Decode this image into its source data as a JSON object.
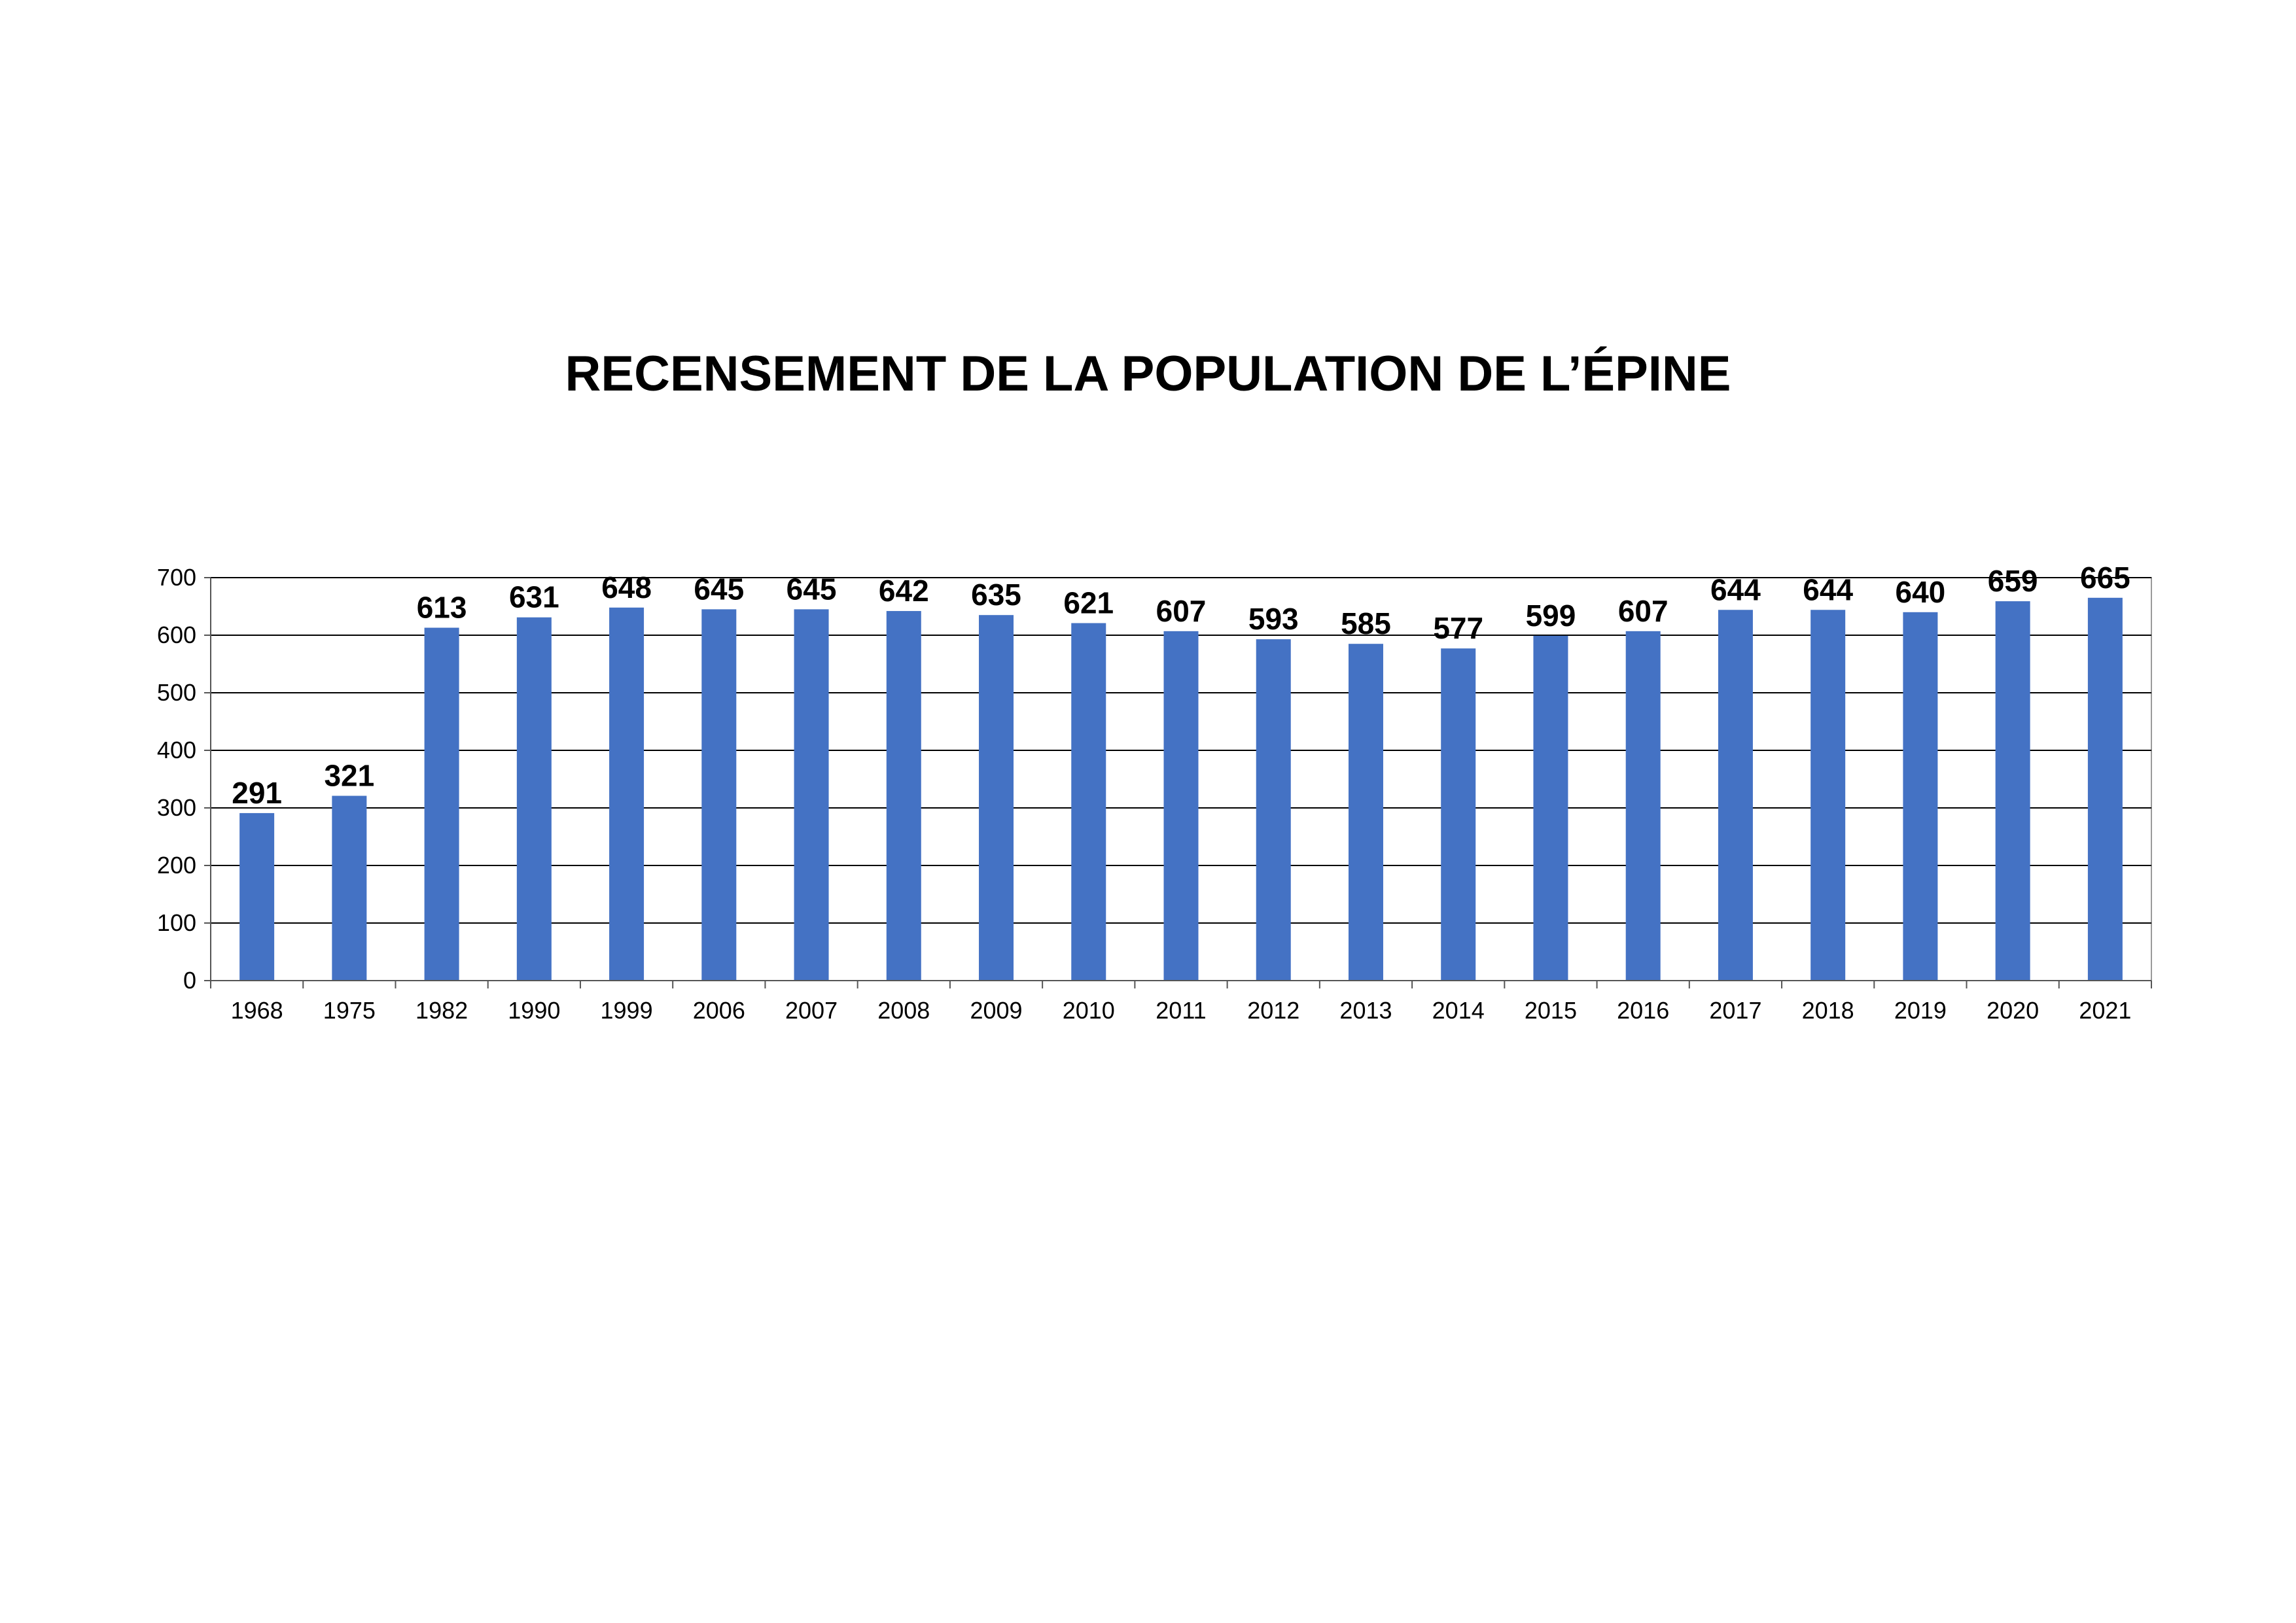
{
  "chart_data": {
    "type": "bar",
    "title": "RECENSEMENT DE LA POPULATION DE L’ÉPINE",
    "xlabel": "",
    "ylabel": "",
    "categories": [
      "1968",
      "1975",
      "1982",
      "1990",
      "1999",
      "2006",
      "2007",
      "2008",
      "2009",
      "2010",
      "2011",
      "2012",
      "2013",
      "2014",
      "2015",
      "2016",
      "2017",
      "2018",
      "2019",
      "2020",
      "2021"
    ],
    "values": [
      291,
      321,
      613,
      631,
      648,
      645,
      645,
      642,
      635,
      621,
      607,
      593,
      585,
      577,
      599,
      607,
      644,
      644,
      640,
      659,
      665
    ],
    "ylim": [
      0,
      700
    ],
    "yticks": [
      0,
      100,
      200,
      300,
      400,
      500,
      600,
      700
    ],
    "grid": true,
    "legend": "none",
    "data_labels": true,
    "bar_color": "#4472C4",
    "gridline_color": "#000000"
  }
}
